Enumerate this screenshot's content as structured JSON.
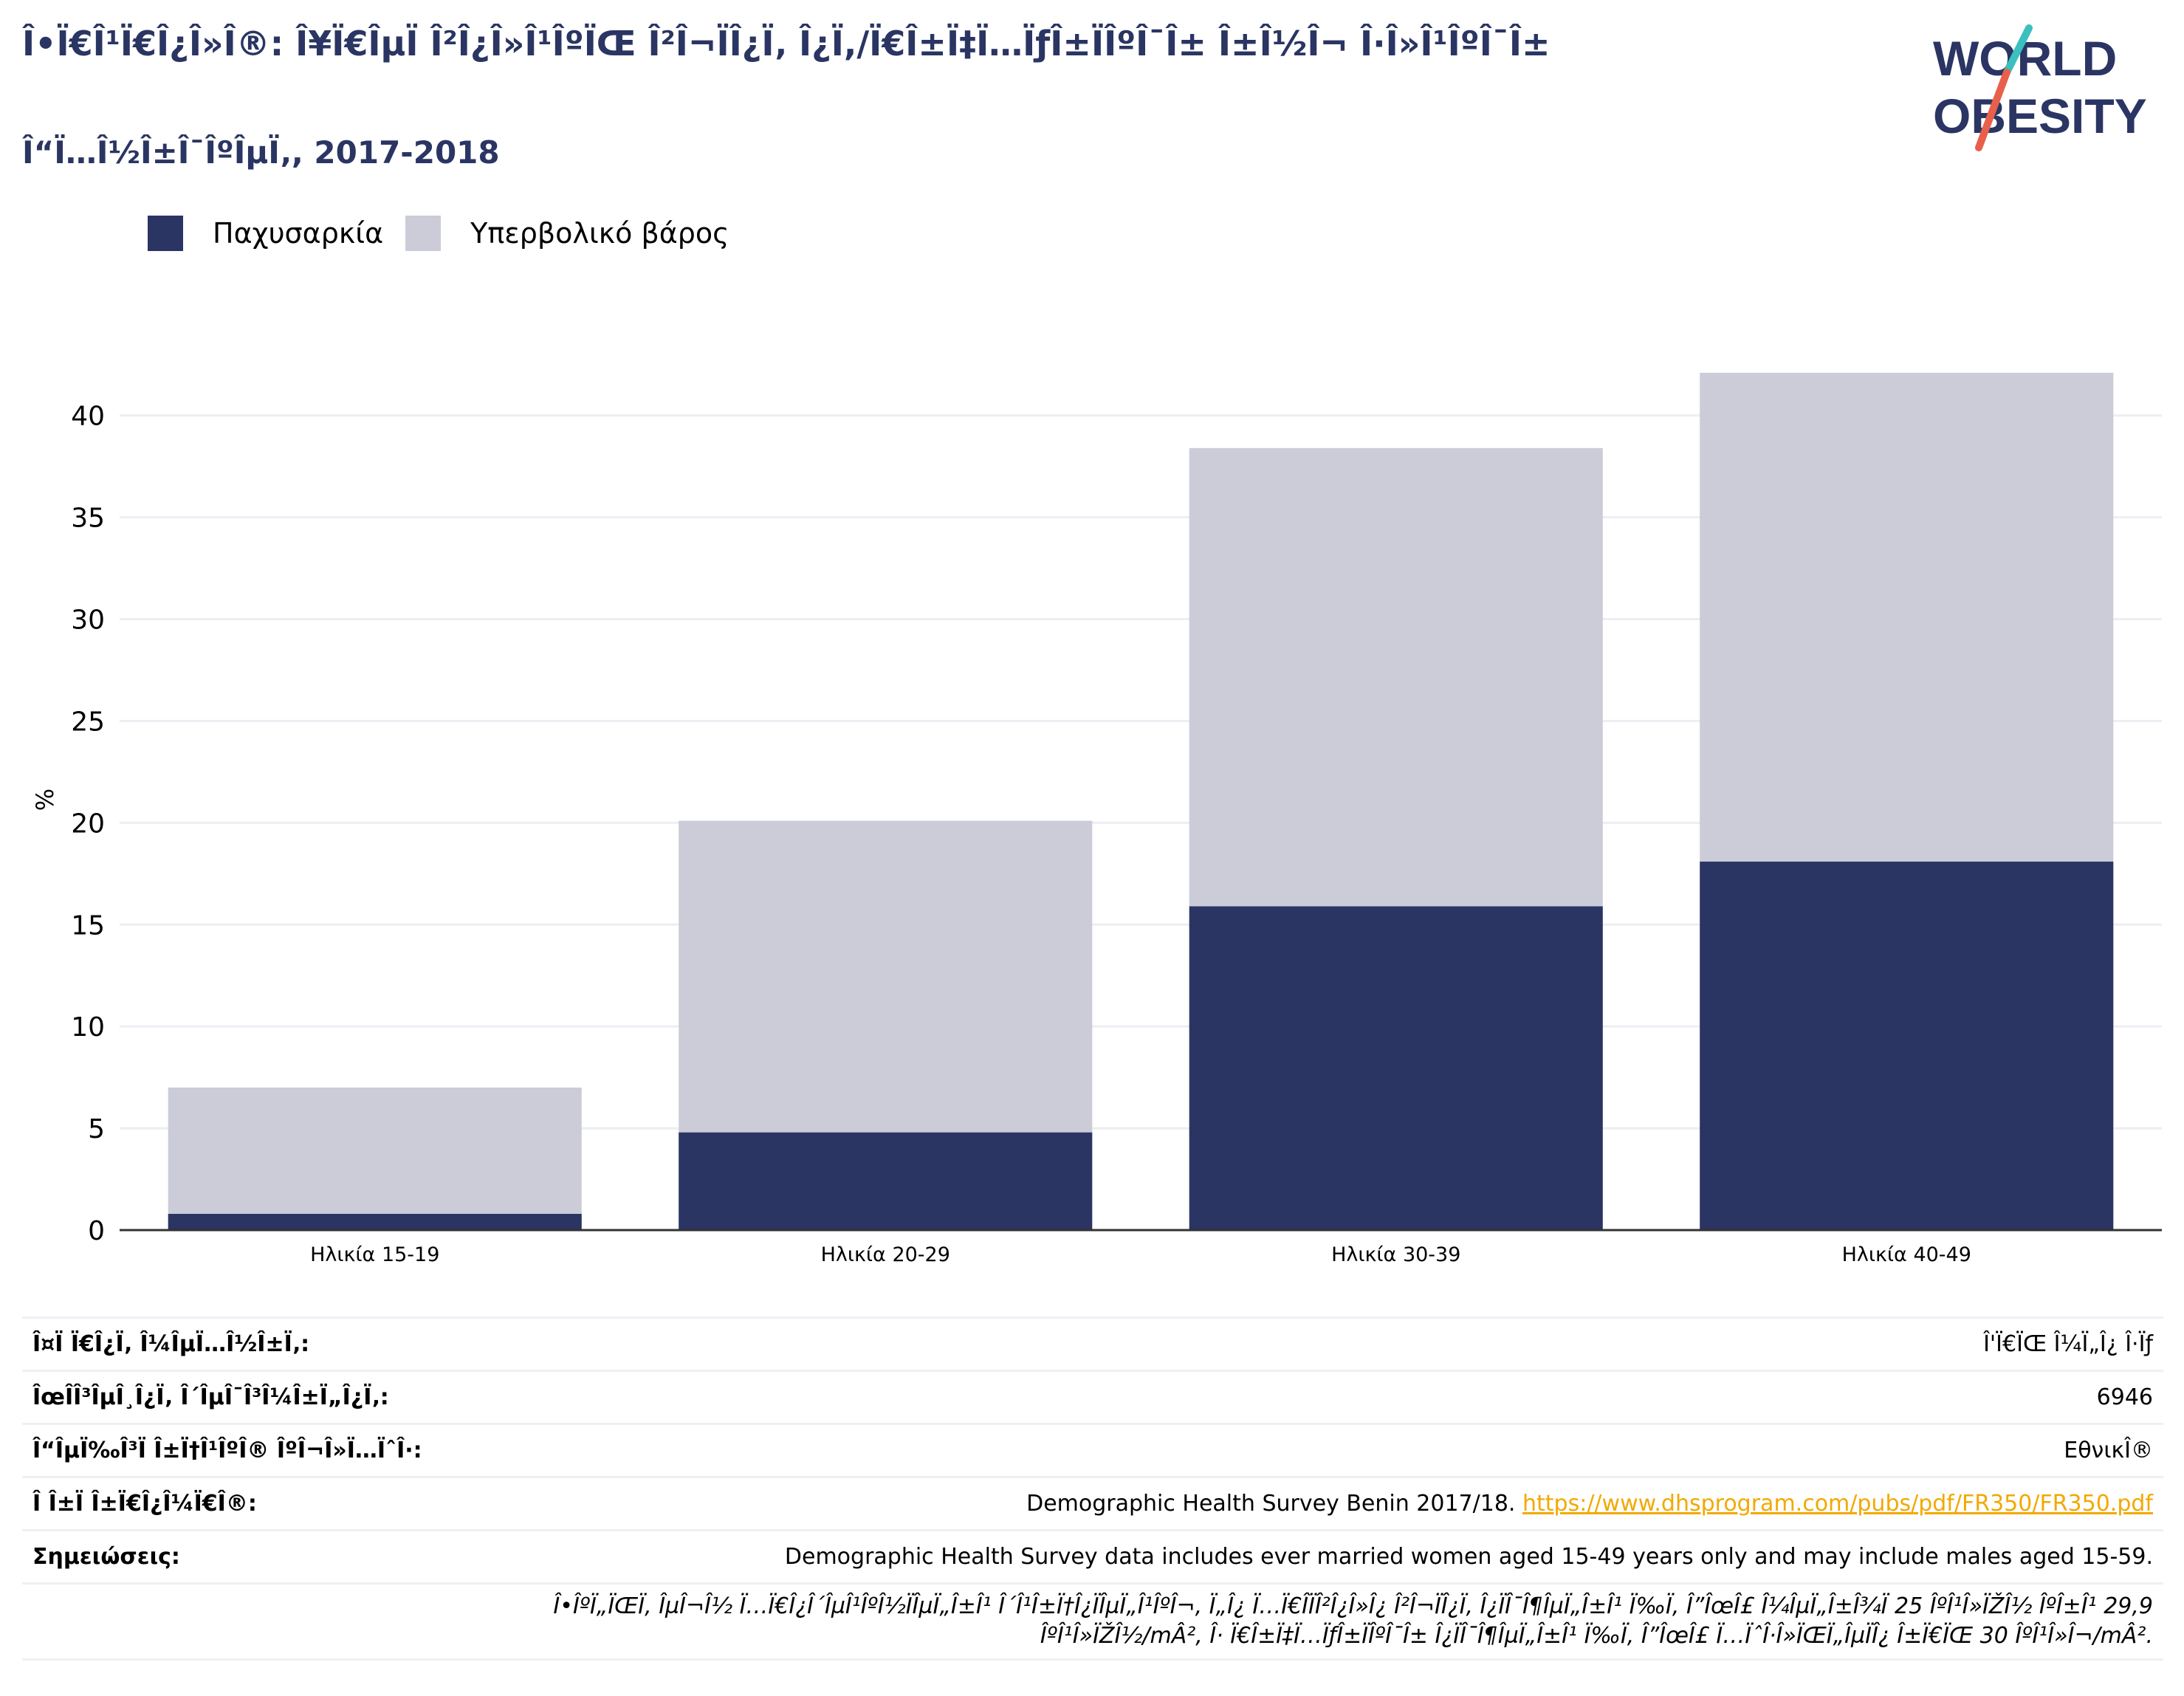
{
  "title": "Î•Ï€Î¹Ï€Î¿Î»Î®: Î¥Ï€ÎµÏ Î²Î¿Î»Î¹ÎºÏŒ Î²Î¬ÏÎ¿Ï‚ Î¿Ï,/Ï€Î±Ï‡Ï…ÏƒÎ±ÏÎºÎ¯Î± Î±Î½Î¬ Î·Î»Î¹ÎºÎ¯Î±",
  "subtitle": "Î“Ï…Î½Î±Î¯ÎºÎµÏ‚, 2017-2018",
  "logo": {
    "line1": "WORLD",
    "line2": "OBESITY",
    "accent_teal": "#3bbfbf",
    "accent_red": "#e8604c",
    "text_color": "#2a3563"
  },
  "legend": [
    {
      "label": "Παχυσαρκία",
      "color": "#2a3563"
    },
    {
      "label": "Υπερβολικό βάρος",
      "color": "#cbccd8"
    }
  ],
  "chart_data": {
    "type": "bar",
    "stacked": true,
    "categories": [
      "Ηλικία 15-19",
      "Ηλικία 20-29",
      "Ηλικία 30-39",
      "Ηλικία 40-49"
    ],
    "series": [
      {
        "name": "Παχυσαρκία",
        "color": "#2a3563",
        "values": [
          0.8,
          4.8,
          15.9,
          18.1
        ]
      },
      {
        "name": "Υπερβολικό βάρος",
        "color": "#cbccd8",
        "values": [
          6.2,
          15.3,
          22.5,
          24.0
        ]
      }
    ],
    "ylabel": "%",
    "ylim": [
      0,
      43
    ],
    "yticks": [
      0,
      5,
      10,
      15,
      20,
      25,
      30,
      35,
      40
    ],
    "grid": true
  },
  "info_rows": [
    {
      "key": "Î¤Ï Ï€Î¿Ï‚ Î¼ÎµÏ…Î½Î±Ï‚:",
      "value": "Î'Ï€ÏŒ Î¼Ï„Î¿ Î·Ïƒ"
    },
    {
      "key": "ÎœÎ­Î³ÎµÎ¸Î¿Ï‚ Î´ÎµÎ¯Î³Î¼Î±Ï„Î¿Ï‚:",
      "value": "6946"
    },
    {
      "key": "Î“ÎµÏ‰Î³Ï Î±Ï†Î¹ÎºÎ® ÎºÎ¬Î»Ï…ÏˆÎ·:",
      "value": "ΕθνικÎ®"
    },
    {
      "key": "Î Î±Ï Î±Ï€Î¿Î¼Ï€Î®:",
      "value": "Demographic Health Survey Benin 2017/18.",
      "link": "https://www.dhsprogram.com/pubs/pdf/FR350/FR350.pdf"
    },
    {
      "key": "Σημειώσεις:",
      "value": "Demographic Health Survey data includes ever married women aged 15-49 years only and may include males aged 15-59."
    },
    {
      "key": "",
      "value": "Î•ÎºÏ„ÏŒÏ‚ ÎµÎ¬Î½ Ï…Ï€Î¿Î´ÎµÎ¹ÎºÎ½ÏÎµÏ„Î±Î¹ Î´Î¹Î±Ï†Î¿ÏÎµÏ„Î¹ÎºÎ¬, Ï„Î¿ Ï…Ï€Î­ÏÎ²Î¿Î»Î¿ Î²Î¬ÏÎ¿Ï‚ Î¿ÏÎ¯Î¶ÎµÏ„Î±Î¹ Ï‰Ï‚ Î”ÎœÎ£ Î¼ÎµÏ„Î±Î¾Ï 25 ÎºÎ¹Î»ÏŽÎ½ ÎºÎ±Î¹ 29,9 ÎºÎ¹Î»ÏŽÎ½/mÂ², Î· Ï€Î±Ï‡Ï…ÏƒÎ±ÏÎºÎ¯Î± Î¿ÏÎ¯Î¶ÎµÏ„Î±Î¹ Ï‰Ï‚ Î”ÎœÎ£ Ï…ÏˆÎ·Î»ÏŒÏ„ÎµÏÎ¿ Î±Ï€ÏŒ 30 ÎºÎ¹Î»Î¬/mÂ²."
    }
  ]
}
